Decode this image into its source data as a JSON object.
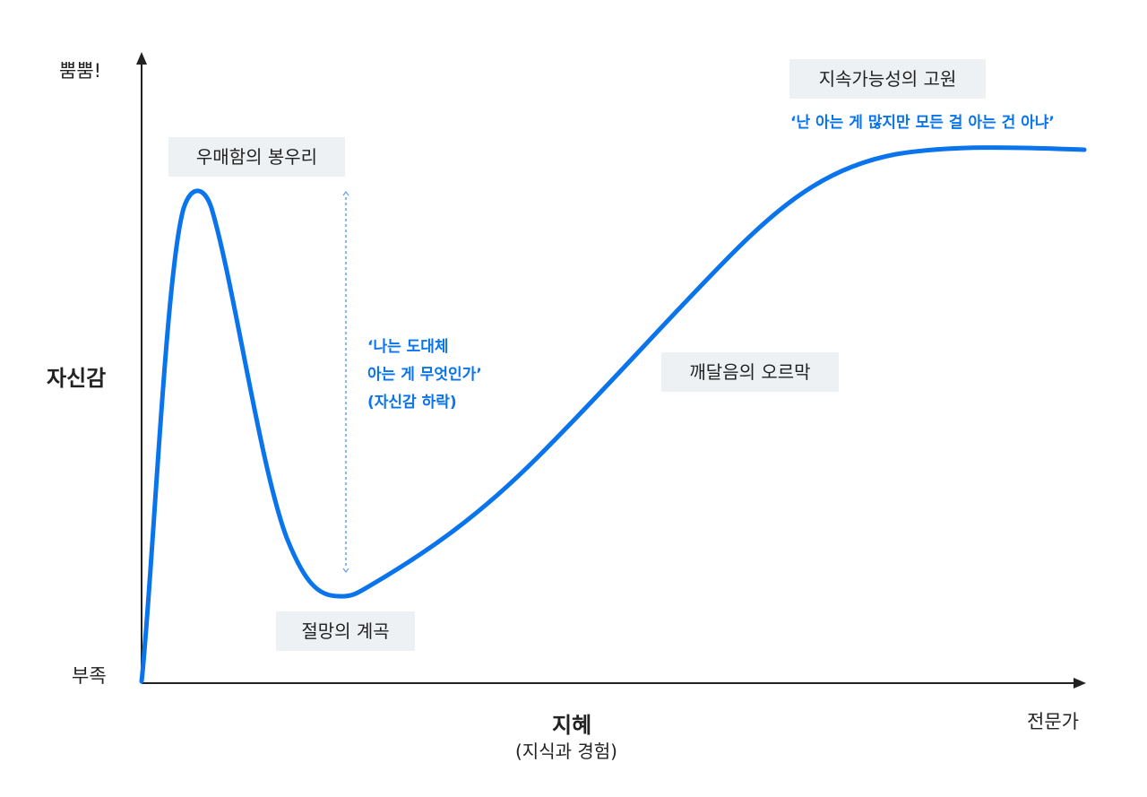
{
  "colors": {
    "curve": "#0a74ec",
    "axis": "#222222",
    "tag_bg": "#eef1f4",
    "quote": "#0a74ec"
  },
  "y_axis": {
    "top_label": "뿜뿜!",
    "title": "자신감",
    "bottom_label": "부족"
  },
  "x_axis": {
    "title": "지혜",
    "subtitle": "(지식과 경험)",
    "end_label": "전문가"
  },
  "stages": {
    "peak": "우매함의 봉우리",
    "valley": "절망의 계곡",
    "slope": "깨달음의 오르막",
    "plateau": "지속가능성의 고원"
  },
  "quotes": {
    "plateau": "‘난 아는 게 많지만 모든 걸 아는 건 아냐’",
    "drop_line1": "‘나는 도대체",
    "drop_line2": "아는 게 무엇인가’",
    "drop_line3": "(자신감 하락)"
  }
}
